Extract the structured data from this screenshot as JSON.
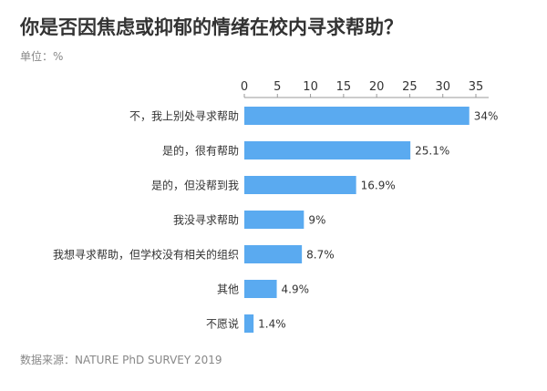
{
  "title": "你是否因焦虑或抑郁的情绪在校内寻求帮助？",
  "unit_label": "单位：%",
  "source": "数据来源：NATURE PhD SURVEY 2019",
  "colors": {
    "bar": "#5aaaf0",
    "text": "#333333",
    "muted": "#888888",
    "axis": "#999999"
  },
  "chart_data": {
    "type": "bar",
    "orientation": "horizontal",
    "categories": [
      "不，我上别处寻求帮助",
      "是的，很有帮助",
      "是的，但没帮到我",
      "我没寻求帮助",
      "我想寻求帮助，但学校没有相关的组织",
      "其他",
      "不愿说"
    ],
    "values": [
      34,
      25.1,
      16.9,
      9,
      8.7,
      4.9,
      1.4
    ],
    "value_labels": [
      "34%",
      "25.1%",
      "16.9%",
      "9%",
      "8.7%",
      "4.9%",
      "1.4%"
    ],
    "xlim": [
      0,
      35
    ],
    "ticks": [
      0,
      5,
      10,
      15,
      20,
      25,
      30,
      35
    ],
    "axis_position": "top",
    "grid": false,
    "legend": "none"
  }
}
